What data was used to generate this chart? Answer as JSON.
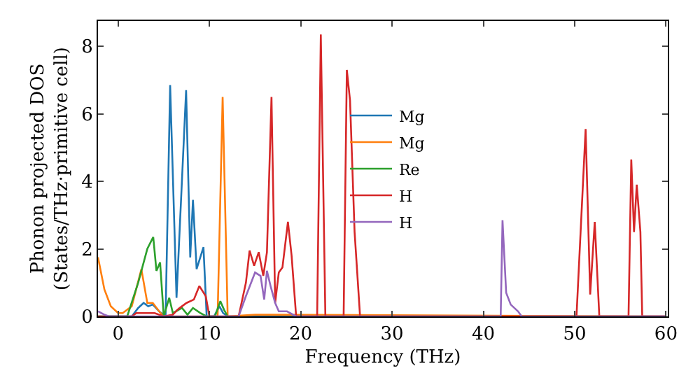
{
  "chart_data": {
    "type": "line",
    "xlabel": "Frequency (THz)",
    "ylabel": "Phonon projected DOS\n(States/THz·primitive cell)",
    "xlim": [
      -2.2,
      60.2
    ],
    "ylim": [
      0,
      8.75
    ],
    "xticks": [
      0,
      10,
      20,
      30,
      40,
      50,
      60
    ],
    "yticks": [
      0,
      2,
      4,
      6,
      8
    ],
    "grid": false,
    "legend": "center",
    "marker": "none",
    "line_style": "solid",
    "series": [
      {
        "name": "Mg",
        "color": "#1f77b4",
        "x": [
          -2.2,
          1.5,
          2.2,
          2.8,
          3.3,
          3.8,
          4.5,
          5.2,
          5.7,
          6.4,
          7.45,
          7.9,
          8.2,
          8.6,
          9.35,
          9.7,
          10.5,
          11.1,
          11.5,
          12,
          60
        ],
        "values": [
          0,
          0,
          0.25,
          0.4,
          0.3,
          0.35,
          0.15,
          0,
          6.85,
          0.55,
          6.7,
          1.75,
          3.45,
          1.4,
          2.05,
          0,
          0,
          0.3,
          0.1,
          0,
          0
        ]
      },
      {
        "name": "Mg",
        "color": "#ff7f0e",
        "x": [
          -2.2,
          -1.5,
          -0.8,
          0,
          0.5,
          1.5,
          2.55,
          3.2,
          3.8,
          4.5,
          5,
          10.9,
          11.45,
          12,
          15,
          17,
          60
        ],
        "values": [
          1.75,
          0.8,
          0.3,
          0.1,
          0.1,
          0.3,
          1.4,
          0.4,
          0.4,
          0.15,
          0,
          0,
          6.5,
          0,
          0.05,
          0.05,
          0
        ]
      },
      {
        "name": "Re",
        "color": "#2ca02c",
        "x": [
          -2.2,
          1,
          2.2,
          3.2,
          3.85,
          4.2,
          4.6,
          5,
          5.6,
          6,
          7,
          7.6,
          8.2,
          9,
          9.7,
          10.6,
          11.2,
          11.6,
          12
        ],
        "values": [
          0,
          0,
          1,
          2.0,
          2.35,
          1.35,
          1.6,
          0,
          0.55,
          0.1,
          0.25,
          0.05,
          0.25,
          0.1,
          0,
          0,
          0.45,
          0.2,
          0
        ]
      },
      {
        "name": "H",
        "color": "#d62728",
        "x": [
          -2.2,
          1.5,
          2,
          4,
          5,
          6,
          6.5,
          7.5,
          8.3,
          8.9,
          9.6,
          10,
          13.2,
          14,
          14.4,
          14.9,
          15.4,
          15.9,
          16.3,
          16.8,
          17.2,
          17.6,
          18,
          18.6,
          19,
          19.5,
          21.8,
          22.2,
          22.7,
          24.7,
          25.05,
          25.4,
          25.9,
          26.5,
          50.2,
          51.2,
          51.7,
          52.2,
          52.7,
          55.9,
          56.2,
          56.5,
          56.8,
          57.2,
          57.4,
          60
        ],
        "values": [
          0,
          0,
          0.1,
          0.1,
          0,
          0.05,
          0.2,
          0.4,
          0.5,
          0.9,
          0.6,
          0,
          0,
          1.0,
          1.95,
          1.5,
          1.9,
          1.2,
          1.9,
          6.5,
          0.4,
          1.3,
          1.45,
          2.8,
          1.8,
          0,
          0,
          8.35,
          0,
          0,
          7.3,
          6.4,
          2.5,
          0,
          0,
          5.55,
          0.65,
          2.8,
          0,
          0,
          4.65,
          2.5,
          3.9,
          2.5,
          0,
          0
        ]
      },
      {
        "name": "H",
        "color": "#9467bd",
        "x": [
          -2.2,
          -1.5,
          -1,
          13.2,
          14,
          15,
          15.6,
          16,
          16.3,
          16.7,
          17.2,
          17.6,
          18.5,
          19.5,
          41.9,
          42.1,
          42.5,
          43,
          43.8,
          44.2,
          60
        ],
        "values": [
          0.15,
          0.05,
          0,
          0,
          0.6,
          1.3,
          1.2,
          0.5,
          1.35,
          0.9,
          0.4,
          0.15,
          0.15,
          0,
          0,
          2.85,
          0.7,
          0.35,
          0.15,
          0,
          0
        ]
      }
    ]
  }
}
